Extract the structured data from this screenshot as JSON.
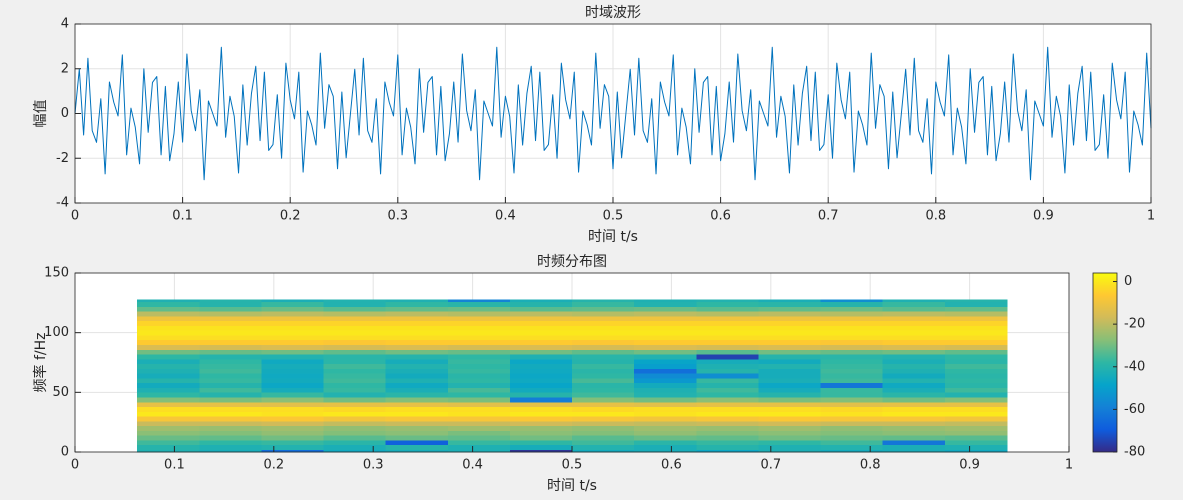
{
  "chart_data": [
    {
      "type": "line",
      "title": "时域波形",
      "xlabel": "时间 t/s",
      "ylabel": "幅值",
      "x": [
        0,
        0.004,
        0.008,
        0.012,
        0.016,
        0.02,
        0.024,
        0.028,
        0.032,
        0.036,
        0.04,
        0.044,
        0.048,
        0.052,
        0.056,
        0.06,
        0.064,
        0.068,
        0.072,
        0.076,
        0.08,
        0.084,
        0.088,
        0.092,
        0.096,
        0.1,
        0.104,
        0.108,
        0.112,
        0.116,
        0.12,
        0.124,
        0.128,
        0.132,
        0.136,
        0.14,
        0.144,
        0.148,
        0.152,
        0.156,
        0.16,
        0.164,
        0.168,
        0.172,
        0.176,
        0.18,
        0.184,
        0.188,
        0.192,
        0.196,
        0.2,
        0.204,
        0.208,
        0.212,
        0.216,
        0.22,
        0.224,
        0.228,
        0.232,
        0.236,
        0.24,
        0.244,
        0.248,
        0.252,
        0.256,
        0.26,
        0.264,
        0.268,
        0.272,
        0.276,
        0.28,
        0.284,
        0.288,
        0.292,
        0.296,
        0.3,
        0.304,
        0.308,
        0.312,
        0.316,
        0.32,
        0.324,
        0.328,
        0.332,
        0.336,
        0.34,
        0.344,
        0.348,
        0.352,
        0.356,
        0.36,
        0.364,
        0.368,
        0.372,
        0.376,
        0.38,
        0.384,
        0.388,
        0.392,
        0.396,
        0.4,
        0.404,
        0.408,
        0.412,
        0.416,
        0.42,
        0.424,
        0.428,
        0.432,
        0.436,
        0.44,
        0.444,
        0.448,
        0.452,
        0.456,
        0.46,
        0.464,
        0.468,
        0.472,
        0.476,
        0.48,
        0.484,
        0.488,
        0.492,
        0.496,
        0.5,
        0.504,
        0.508,
        0.512,
        0.516,
        0.52,
        0.524,
        0.528,
        0.532,
        0.536,
        0.54,
        0.544,
        0.548,
        0.552,
        0.556,
        0.56,
        0.564,
        0.568,
        0.572,
        0.576,
        0.58,
        0.584,
        0.588,
        0.592,
        0.596,
        0.6,
        0.604,
        0.608,
        0.612,
        0.616,
        0.62,
        0.624,
        0.628,
        0.632,
        0.636,
        0.64,
        0.644,
        0.648,
        0.652,
        0.656,
        0.66,
        0.664,
        0.668,
        0.672,
        0.676,
        0.68,
        0.684,
        0.688,
        0.692,
        0.696,
        0.7,
        0.704,
        0.708,
        0.712,
        0.716,
        0.72,
        0.724,
        0.728,
        0.732,
        0.736,
        0.74,
        0.744,
        0.748,
        0.752,
        0.756,
        0.76,
        0.764,
        0.768,
        0.772,
        0.776,
        0.78,
        0.784,
        0.788,
        0.792,
        0.796,
        0.8,
        0.804,
        0.808,
        0.812,
        0.816,
        0.82,
        0.824,
        0.828,
        0.832,
        0.836,
        0.84,
        0.844,
        0.848,
        0.852,
        0.856,
        0.86,
        0.864,
        0.868,
        0.872,
        0.876,
        0.88,
        0.884,
        0.888,
        0.892,
        0.896,
        0.9,
        0.904,
        0.908,
        0.912,
        0.916,
        0.92,
        0.924,
        0.928,
        0.932,
        0.936,
        0.94,
        0.944,
        0.948,
        0.952,
        0.956,
        0.96,
        0.964,
        0.968,
        0.972,
        0.976,
        0.98,
        0.984,
        0.988,
        0.992,
        0.996,
        1
      ],
      "series": [
        {
          "color": "#0072bd",
          "values": [
            0,
            1.98,
            -0.96,
            2.47,
            -0.77,
            -1.29,
            0.66,
            -2.7,
            1.41,
            0.51,
            -0.11,
            2.62,
            -1.85,
            0.24,
            -0.61,
            -2.25,
            2,
            -0.84,
            1.39,
            1.65,
            -1.85,
            1.21,
            -2.11,
            -0.9,
            1.41,
            -1.28,
            2.66,
            0.13,
            -0.77,
            1.06,
            -2.96,
            0.56,
            0,
            -0.56,
            2.96,
            -1.06,
            0.77,
            -0.13,
            -2.66,
            1.28,
            -1.41,
            0.9,
            2.11,
            -1.21,
            1.85,
            -1.65,
            -1.39,
            0.84,
            -2,
            2.25,
            0.61,
            -0.24,
            1.85,
            -2.62,
            0.11,
            -0.51,
            -1.41,
            2.7,
            -0.66,
            1.29,
            0.77,
            -2.47,
            0.96,
            -1.98,
            0,
            1.98,
            -0.96,
            2.47,
            -0.77,
            -1.29,
            0.66,
            -2.7,
            1.41,
            0.51,
            -0.11,
            2.62,
            -1.85,
            0.24,
            -0.61,
            -2.25,
            2,
            -0.84,
            1.39,
            1.65,
            -1.85,
            1.21,
            -2.11,
            -0.9,
            1.41,
            -1.28,
            2.66,
            0.13,
            -0.77,
            1.06,
            -2.96,
            0.56,
            0,
            -0.56,
            2.96,
            -1.06,
            0.77,
            -0.13,
            -2.66,
            1.28,
            -1.41,
            0.9,
            2.11,
            -1.21,
            1.85,
            -1.65,
            -1.39,
            0.84,
            -2,
            2.25,
            0.61,
            -0.24,
            1.85,
            -2.62,
            0.11,
            -0.51,
            -1.41,
            2.7,
            -0.66,
            1.29,
            0.77,
            -2.47,
            0.96,
            -1.98,
            0,
            1.98,
            -0.96,
            2.47,
            -0.77,
            -1.29,
            0.66,
            -2.7,
            1.41,
            0.51,
            -0.11,
            2.62,
            -1.85,
            0.24,
            -0.61,
            -2.25,
            2,
            -0.84,
            1.39,
            1.65,
            -1.85,
            1.21,
            -2.11,
            -0.9,
            1.41,
            -1.28,
            2.66,
            0.13,
            -0.77,
            1.06,
            -2.96,
            0.56,
            0,
            -0.56,
            2.96,
            -1.06,
            0.77,
            -0.13,
            -2.66,
            1.28,
            -1.41,
            0.9,
            2.11,
            -1.21,
            1.85,
            -1.65,
            -1.39,
            0.84,
            -2,
            2.25,
            0.61,
            -0.24,
            1.85,
            -2.62,
            0.11,
            -0.51,
            -1.41,
            2.7,
            -0.66,
            1.29,
            0.77,
            -2.47,
            0.96,
            -1.98,
            0,
            1.98,
            -0.96,
            2.47,
            -0.77,
            -1.29,
            0.66,
            -2.7,
            1.41,
            0.51,
            -0.11,
            2.62,
            -1.85,
            0.24,
            -0.61,
            -2.25,
            2,
            -0.84,
            1.39,
            1.65,
            -1.85,
            1.21,
            -2.11,
            -0.9,
            1.41,
            -1.28,
            2.66,
            0.13,
            -0.77,
            1.06,
            -2.96,
            0.56,
            0,
            -0.56,
            2.96,
            -1.06,
            0.77,
            -0.13,
            -2.66,
            1.28,
            -1.41,
            0.9,
            2.11,
            -1.21,
            1.85,
            -1.65,
            -1.39,
            0.84,
            -2,
            2.25,
            0.61,
            -0.24,
            1.85,
            -2.62,
            0.11,
            -0.51,
            -1.41,
            2.7,
            -0.66
          ]
        }
      ],
      "xlim": [
        0,
        1
      ],
      "ylim": [
        -4,
        4
      ],
      "xticks": [
        0,
        0.1,
        0.2,
        0.3,
        0.4,
        0.5,
        0.6,
        0.7,
        0.8,
        0.9,
        1
      ],
      "yticks": [
        -4,
        -2,
        0,
        2,
        4
      ],
      "grid": true
    },
    {
      "type": "heatmap",
      "title": "时频分布图",
      "xlabel": "时间 t/s",
      "ylabel": "频率 f/Hz",
      "x": [
        0.09375,
        0.15625,
        0.21875,
        0.28125,
        0.34375,
        0.40625,
        0.46875,
        0.53125,
        0.59375,
        0.65625,
        0.71875,
        0.78125,
        0.84375,
        0.90625
      ],
      "y": [
        0,
        4,
        8,
        12,
        16,
        20,
        24,
        28,
        32,
        36,
        40,
        44,
        48,
        52,
        56,
        60,
        64,
        68,
        72,
        76,
        80,
        84,
        88,
        92,
        96,
        100,
        104,
        108,
        112,
        116,
        120,
        124,
        128
      ],
      "z": [
        [
          -42,
          -44,
          -65,
          -46,
          -44,
          -43,
          -78,
          -45,
          -44,
          -47,
          -43,
          -45,
          -44,
          -46
        ],
        [
          -40,
          -42,
          -41,
          -43,
          -40,
          -42,
          -44,
          -41,
          -43,
          -40,
          -42,
          -41,
          -43,
          -42
        ],
        [
          -36,
          -38,
          -37,
          -39,
          -68,
          -37,
          -38,
          -36,
          -39,
          -37,
          -38,
          -36,
          -62,
          -37
        ],
        [
          -31,
          -32,
          -30,
          -33,
          -31,
          -32,
          -30,
          -33,
          -31,
          -32,
          -30,
          -31,
          -32,
          -33
        ],
        [
          -27,
          -28,
          -26,
          -28,
          -27,
          -29,
          -27,
          -28,
          -26,
          -28,
          -27,
          -28,
          -27,
          -26
        ],
        [
          -24,
          -25,
          -24,
          -26,
          -25,
          -24,
          -25,
          -26,
          -24,
          -25,
          -24,
          -26,
          -25,
          -24
        ],
        [
          -18,
          -18,
          -17,
          -19,
          -18,
          -18,
          -17,
          -18,
          -19,
          -18,
          -17,
          -18,
          -18,
          -19
        ],
        [
          -8,
          -8,
          -7,
          -9,
          -8,
          -8,
          -7,
          -8,
          -9,
          -8,
          -7,
          -8,
          -8,
          -9
        ],
        [
          0,
          0,
          -1,
          0,
          0,
          -1,
          0,
          0,
          -1,
          0,
          0,
          -1,
          0,
          0
        ],
        [
          -2,
          -2,
          -2,
          -3,
          -2,
          -2,
          -2,
          -3,
          -2,
          -2,
          -2,
          -3,
          -2,
          -2
        ],
        [
          -12,
          -12,
          -13,
          -12,
          -12,
          -13,
          -12,
          -12,
          -13,
          -12,
          -12,
          -13,
          -12,
          -12
        ],
        [
          -28,
          -29,
          -27,
          -30,
          -28,
          -29,
          -60,
          -28,
          -30,
          -27,
          -29,
          -28,
          -30,
          -28
        ],
        [
          -38,
          -40,
          -37,
          -41,
          -39,
          -38,
          -40,
          -36,
          -41,
          -38,
          -40,
          -37,
          -39,
          -41
        ],
        [
          -42,
          -36,
          -44,
          -37,
          -43,
          -35,
          -45,
          -38,
          -42,
          -36,
          -44,
          -37,
          -43,
          -36
        ],
        [
          -45,
          -40,
          -47,
          -38,
          -46,
          -41,
          -48,
          -39,
          -45,
          -40,
          -47,
          -62,
          -46,
          -39
        ],
        [
          -40,
          -37,
          -45,
          -36,
          -42,
          -38,
          -46,
          -35,
          -52,
          -37,
          -43,
          -36,
          -41,
          -38
        ],
        [
          -44,
          -38,
          -46,
          -37,
          -45,
          -39,
          -47,
          -38,
          -56,
          -55,
          -44,
          -37,
          -45,
          -39
        ],
        [
          -42,
          -36,
          -45,
          -38,
          -43,
          -37,
          -46,
          -39,
          -64,
          -40,
          -44,
          -36,
          -42,
          -38
        ],
        [
          -40,
          -37,
          -44,
          -36,
          -41,
          -38,
          -45,
          -37,
          -50,
          -42,
          -41,
          -37,
          -40,
          -36
        ],
        [
          -43,
          -38,
          -46,
          -39,
          -44,
          -37,
          -47,
          -40,
          -48,
          -44,
          -45,
          -38,
          -43,
          -39
        ],
        [
          -38,
          -40,
          -41,
          -39,
          -40,
          -38,
          -42,
          -39,
          -41,
          -75,
          -40,
          -39,
          -41,
          -38
        ],
        [
          -30,
          -31,
          -30,
          -32,
          -30,
          -31,
          -30,
          -32,
          -30,
          -33,
          -30,
          -31,
          -30,
          -32
        ],
        [
          -15,
          -16,
          -15,
          -16,
          -15,
          -16,
          -15,
          -16,
          -15,
          -16,
          -15,
          -16,
          -15,
          -16
        ],
        [
          -6,
          -6,
          -6,
          -7,
          -6,
          -6,
          -6,
          -7,
          -6,
          -6,
          -6,
          -7,
          -6,
          -6
        ],
        [
          -2,
          -2,
          -2,
          -2,
          -2,
          -2,
          -2,
          -2,
          -2,
          -2,
          -2,
          -2,
          -2,
          -2
        ],
        [
          0,
          0,
          0,
          0,
          0,
          0,
          0,
          0,
          0,
          0,
          0,
          0,
          0,
          0
        ],
        [
          -1,
          -1,
          -1,
          -1,
          -1,
          -1,
          -1,
          -1,
          -1,
          -1,
          -1,
          -1,
          -1,
          -1
        ],
        [
          -4,
          -4,
          -4,
          -4,
          -4,
          -4,
          -4,
          -4,
          -4,
          -4,
          -4,
          -4,
          -4,
          -4
        ],
        [
          -10,
          -10,
          -10,
          -10,
          -10,
          -10,
          -10,
          -10,
          -10,
          -10,
          -10,
          -10,
          -10,
          -10
        ],
        [
          -20,
          -21,
          -20,
          -21,
          -20,
          -21,
          -20,
          -21,
          -20,
          -21,
          -20,
          -21,
          -20,
          -21
        ],
        [
          -32,
          -33,
          -31,
          -33,
          -32,
          -31,
          -33,
          -32,
          -31,
          -33,
          -32,
          -31,
          -33,
          -32
        ],
        [
          -38,
          -40,
          -37,
          -41,
          -38,
          -39,
          -40,
          -37,
          -41,
          -38,
          -39,
          -40,
          -37,
          -41
        ],
        [
          -42,
          -40,
          -43,
          -41,
          -42,
          -58,
          -43,
          -40,
          -42,
          -41,
          -43,
          -55,
          -42,
          -40
        ]
      ],
      "xlim": [
        0,
        1
      ],
      "ylim": [
        0,
        150
      ],
      "xticks": [
        0,
        0.1,
        0.2,
        0.3,
        0.4,
        0.5,
        0.6,
        0.7,
        0.8,
        0.9,
        1
      ],
      "yticks": [
        0,
        50,
        100,
        150
      ],
      "grid": true,
      "colormap": [
        "#352a87",
        "#0f5cdd",
        "#1481d6",
        "#06a4ca",
        "#2eb7a4",
        "#87bf77",
        "#d1bb59",
        "#fec832",
        "#f9fb0e"
      ],
      "clim": [
        -80,
        4
      ],
      "cticks": [
        -80,
        -60,
        -40,
        -20,
        0
      ]
    }
  ]
}
